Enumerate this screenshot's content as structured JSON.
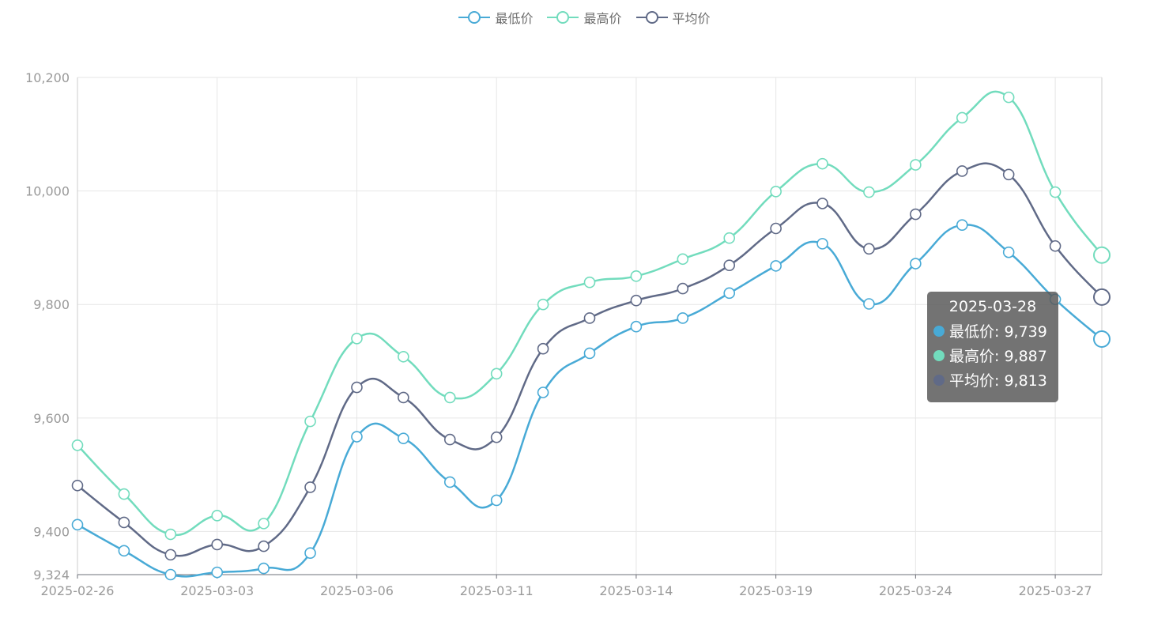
{
  "legend": [
    {
      "name": "最低价",
      "color": "#48aad6"
    },
    {
      "name": "最高价",
      "color": "#72dcbd"
    },
    {
      "name": "平均价",
      "color": "#606a87"
    }
  ],
  "tooltip": {
    "title": "2025-03-28",
    "rows": [
      {
        "label": "最低价: 9,739",
        "color": "#48aad6"
      },
      {
        "label": "最高价: 9,887",
        "color": "#72dcbd"
      },
      {
        "label": "平均价: 9,813",
        "color": "#606a87"
      }
    ]
  },
  "chart_data": {
    "type": "line",
    "smooth": true,
    "x": [
      "2025-02-26",
      "2025-02-27",
      "2025-02-28",
      "2025-03-03",
      "2025-03-04",
      "2025-03-05",
      "2025-03-06",
      "2025-03-07",
      "2025-03-10",
      "2025-03-11",
      "2025-03-12",
      "2025-03-13",
      "2025-03-14",
      "2025-03-17",
      "2025-03-18",
      "2025-03-19",
      "2025-03-20",
      "2025-03-21",
      "2025-03-24",
      "2025-03-25",
      "2025-03-26",
      "2025-03-27",
      "2025-03-28"
    ],
    "x_tick_labels": [
      "2025-02-26",
      "2025-03-03",
      "2025-03-06",
      "2025-03-11",
      "2025-03-14",
      "2025-03-19",
      "2025-03-24",
      "2025-03-27"
    ],
    "x_tick_indices": [
      0,
      3,
      6,
      9,
      12,
      15,
      18,
      21
    ],
    "ylim": [
      9324,
      10200
    ],
    "y_tick_values": [
      9324,
      9400,
      9600,
      9800,
      10000,
      10200
    ],
    "y_tick_labels": [
      "9,324",
      "9,400",
      "9,600",
      "9,800",
      "10,000",
      "10,200"
    ],
    "grid": true,
    "legend_position": "top-center",
    "highlight_index": 22,
    "series": [
      {
        "name": "最低价",
        "color": "#48aad6",
        "values": [
          9412,
          9366,
          9324,
          9328,
          9335,
          9362,
          9567,
          9564,
          9487,
          9455,
          9645,
          9714,
          9761,
          9776,
          9820,
          9868,
          9907,
          9801,
          9872,
          9940,
          9892,
          9809,
          9739
        ]
      },
      {
        "name": "最高价",
        "color": "#72dcbd",
        "values": [
          9552,
          9466,
          9395,
          9428,
          9414,
          9594,
          9740,
          9708,
          9636,
          9678,
          9800,
          9839,
          9850,
          9880,
          9917,
          9999,
          10048,
          9998,
          10046,
          10129,
          10165,
          9998,
          9887
        ]
      },
      {
        "name": "平均价",
        "color": "#606a87",
        "values": [
          9481,
          9416,
          9359,
          9377,
          9374,
          9478,
          9654,
          9636,
          9562,
          9566,
          9722,
          9776,
          9807,
          9828,
          9869,
          9934,
          9978,
          9898,
          9959,
          10035,
          10029,
          9903,
          9813
        ]
      }
    ]
  }
}
